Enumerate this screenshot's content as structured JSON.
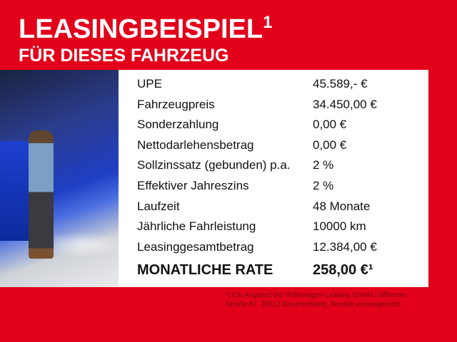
{
  "title": {
    "line1": "LEASINGBEISPIEL",
    "sup": "1",
    "line2": "FÜR DIESES FAHRZEUG"
  },
  "rows": [
    {
      "label": "UPE",
      "value": "45.589,- €"
    },
    {
      "label": "Fahrzeugpreis",
      "value": "34.450,00 €"
    },
    {
      "label": "Sonderzahlung",
      "value": "0,00 €"
    },
    {
      "label": "Nettodarlehensbetrag",
      "value": "0,00 €"
    },
    {
      "label": "Sollzinssatz (gebunden) p.a.",
      "value": "2 %"
    },
    {
      "label": "Effektiver Jahreszins",
      "value": "2 %"
    },
    {
      "label": "Laufzeit",
      "value": "48 Monate"
    },
    {
      "label": "Jährliche Fahrleistung",
      "value": "10000 km"
    },
    {
      "label": "Leasinggesamtbetrag",
      "value": "12.384,00 €"
    }
  ],
  "rate": {
    "label": "MONATLICHE RATE",
    "value": "258,00 €¹"
  },
  "footnote": {
    "line1": "¹) Ein Angebot der Volkswagen Leasing GmbH, Gifhorner",
    "line2": "Straße 57, 38112 Braunschweig. Bonität vorausgesetzt."
  },
  "colors": {
    "background": "#e2001a",
    "panel": "#ffffff",
    "car": "#1f3fc4"
  }
}
